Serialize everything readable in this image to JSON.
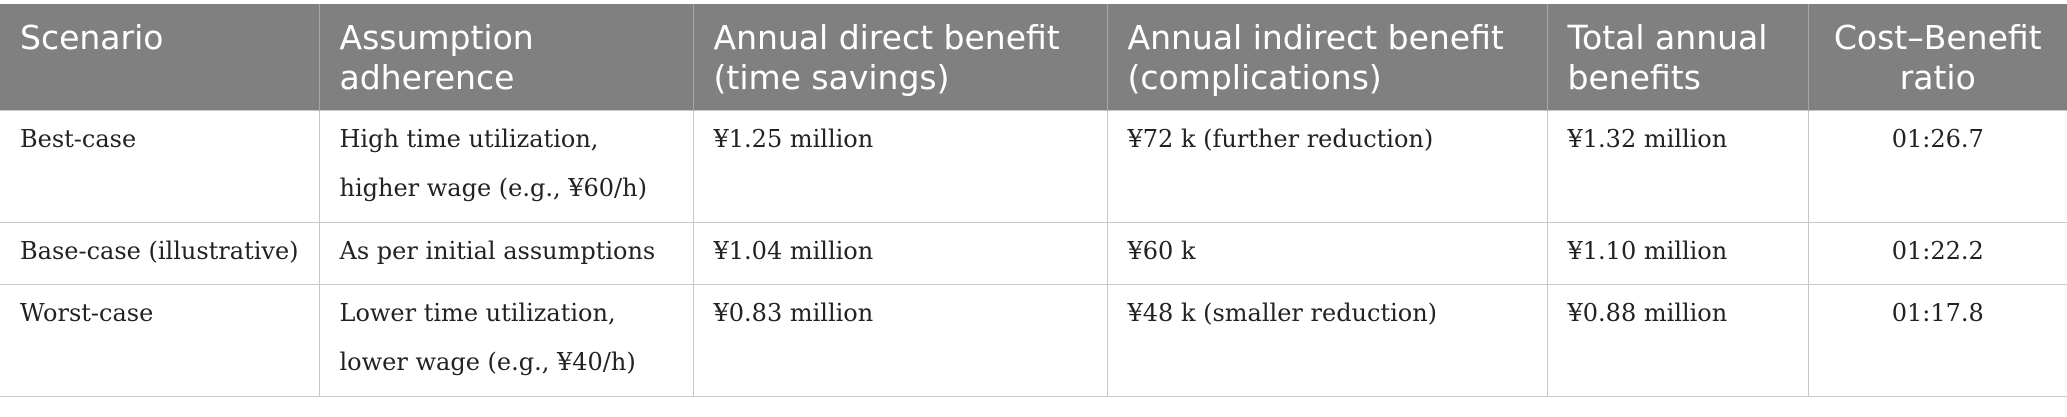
{
  "table": {
    "header": [
      "Scenario",
      "Assumption adherence",
      "Annual direct benefit (time savings)",
      "Annual indirect benefit (complications)",
      "Total annual benefits",
      "Cost–Benefit ratio"
    ],
    "rows": [
      [
        "Best-case",
        "High time utilization, higher wage (e.g., ¥60/h)",
        "¥1.25 million",
        "¥72 k (further reduction)",
        "¥1.32 million",
        "01:26.7"
      ],
      [
        "Base-case (illustrative)",
        "As per initial assumptions",
        "¥1.04 million",
        "¥60 k",
        "¥1.10 million",
        "01:22.2"
      ],
      [
        "Worst-case",
        "Lower time utilization, lower wage (e.g., ¥40/h)",
        "¥0.83 million",
        "¥48 k (smaller reduction)",
        "¥0.88 million",
        "01:17.8"
      ]
    ]
  }
}
